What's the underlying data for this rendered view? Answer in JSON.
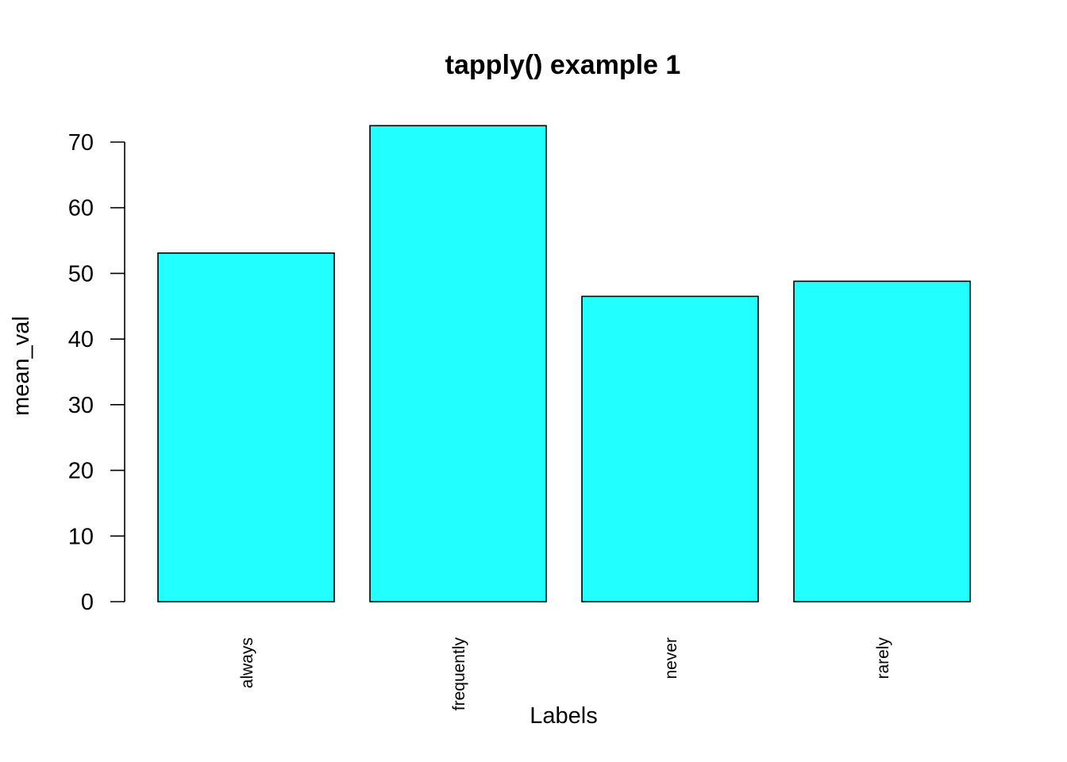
{
  "chart_data": {
    "type": "bar",
    "title": "tapply() example 1",
    "xlabel": "Labels",
    "ylabel": "mean_val",
    "categories": [
      "always",
      "frequently",
      "never",
      "rarely"
    ],
    "values": [
      53.1,
      72.5,
      46.5,
      48.8
    ],
    "ylim": [
      0,
      70
    ],
    "yticks": [
      0,
      10,
      20,
      30,
      40,
      50,
      60,
      70
    ],
    "bar_color": "#22ffff",
    "bar_border_color": "#000000",
    "grid": false,
    "legend": "none"
  }
}
